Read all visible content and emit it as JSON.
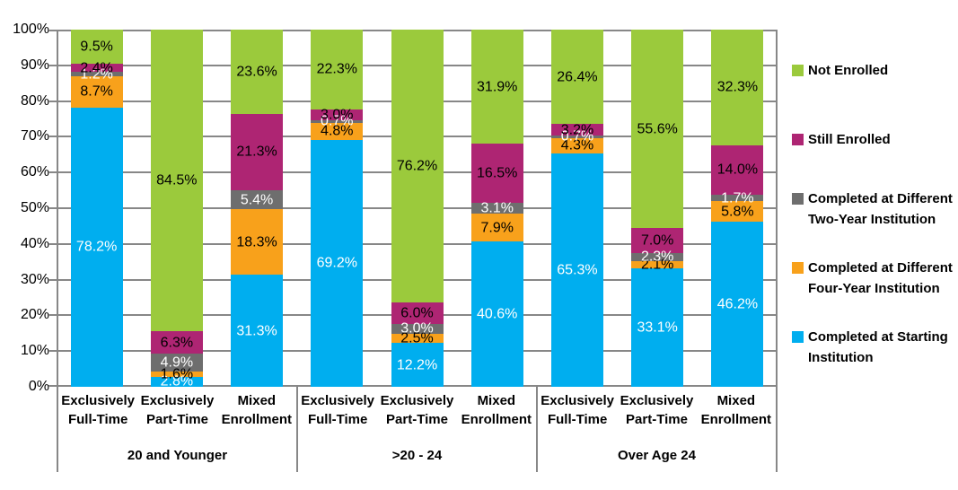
{
  "chart_data": {
    "type": "bar",
    "variant": "100-percent-stacked-column",
    "title": "",
    "grid": true,
    "legend_position": "right",
    "y_axis": {
      "min": 0,
      "max": 100,
      "ticks_top_to_bottom": [
        "100%",
        "90%",
        "80%",
        "70%",
        "60%",
        "50%",
        "40%",
        "30%",
        "20%",
        "10%",
        "0%"
      ]
    },
    "groups": [
      {
        "label": "20 and Younger",
        "categories": [
          "Exclusively Full-Time",
          "Exclusively Part-Time",
          "Mixed Enrollment"
        ]
      },
      {
        "label": ">20 - 24",
        "categories": [
          "Exclusively Full-Time",
          "Exclusively Part-Time",
          "Mixed Enrollment"
        ]
      },
      {
        "label": "Over Age 24",
        "categories": [
          "Exclusively Full-Time",
          "Exclusively Part-Time",
          "Mixed Enrollment"
        ]
      }
    ],
    "series_stack_order_bottom_to_top": [
      {
        "name": "Completed at Starting Institution",
        "color": "#00AEEF",
        "label_color": "#FFFFFF",
        "values": [
          78.2,
          2.8,
          31.3,
          69.2,
          12.2,
          40.6,
          65.3,
          33.1,
          46.2
        ]
      },
      {
        "name": "Completed at Different Four-Year Institution",
        "color": "#F8A11B",
        "label_color": "#000000",
        "values": [
          8.7,
          1.6,
          18.3,
          4.8,
          2.5,
          7.9,
          4.3,
          2.1,
          5.8
        ]
      },
      {
        "name": "Completed at Different Two-Year Institution",
        "color": "#6E6E6E",
        "label_color": "#FFFFFF",
        "values": [
          1.2,
          4.9,
          5.4,
          0.7,
          3.0,
          3.1,
          0.7,
          2.3,
          1.7
        ]
      },
      {
        "name": "Still Enrolled",
        "color": "#AE2573",
        "label_color": "#000000",
        "values": [
          2.4,
          6.3,
          21.3,
          3.0,
          6.0,
          16.5,
          3.2,
          7.0,
          14.0
        ]
      },
      {
        "name": "Not Enrolled",
        "color": "#9BCA3C",
        "label_color": "#000000",
        "values": [
          9.5,
          84.5,
          23.6,
          22.3,
          76.2,
          31.9,
          26.4,
          55.6,
          32.3
        ]
      }
    ],
    "legend_top_to_bottom": [
      "Not Enrolled",
      "Still Enrolled",
      "Completed at Different Two-Year Institution",
      "Completed at Different Four-Year Institution",
      "Completed at Starting Institution"
    ],
    "data_label_format": "0.0%"
  },
  "style": {
    "gridline_color": "#878787"
  }
}
